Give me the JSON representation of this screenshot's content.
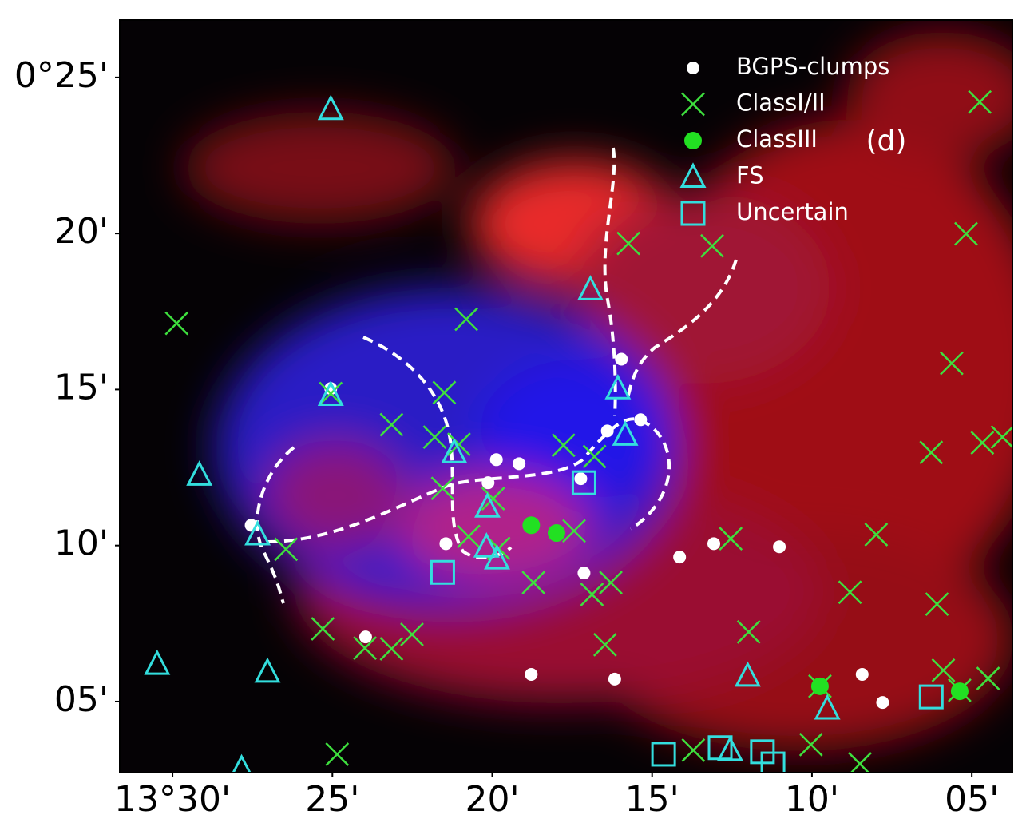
{
  "chart_data": {
    "type": "scatter",
    "annotation": "(d)",
    "xlim": [
      31.65,
      3.73
    ],
    "ylim": [
      2.72,
      26.84
    ],
    "xticks": [
      {
        "value": 30,
        "label": "13°30'"
      },
      {
        "value": 25,
        "label": "25'"
      },
      {
        "value": 20,
        "label": "20'"
      },
      {
        "value": 15,
        "label": "15'"
      },
      {
        "value": 10,
        "label": "10'"
      },
      {
        "value": 5,
        "label": "05'"
      }
    ],
    "yticks": [
      {
        "value": 25,
        "label": "0°25'"
      },
      {
        "value": 20,
        "label": "20'"
      },
      {
        "value": 15,
        "label": "15'"
      },
      {
        "value": 10,
        "label": "10'"
      },
      {
        "value": 5,
        "label": "05'"
      }
    ],
    "legend": "upper right",
    "series": [
      {
        "name": "BGPS-clumps",
        "color": "#ffffff",
        "marker": "circle",
        "x": [
          27.54,
          25.05,
          23.96,
          21.45,
          20.13,
          19.87,
          19.16,
          17.23,
          17.13,
          16.4,
          15.96,
          15.36,
          14.14,
          13.07,
          11.02,
          18.78,
          16.17,
          8.43,
          7.79
        ],
        "values": [
          10.65,
          15.03,
          7.07,
          10.06,
          12.01,
          12.75,
          12.62,
          12.14,
          9.12,
          13.67,
          15.97,
          14.03,
          9.63,
          10.06,
          9.96,
          5.87,
          5.72,
          5.87,
          4.97
        ]
      },
      {
        "name": "ClassI/II",
        "color": "#3ee03e",
        "marker": "x",
        "x": [
          4.75,
          5.18,
          13.12,
          15.74,
          29.87,
          20.81,
          5.63,
          25.05,
          21.5,
          23.15,
          21.8,
          21.04,
          17.77,
          16.8,
          6.27,
          4.67,
          4.04,
          21.55,
          19.97,
          20.74,
          19.8,
          17.44,
          12.54,
          7.99,
          26.45,
          18.71,
          16.88,
          16.29,
          8.81,
          6.09,
          25.3,
          22.51,
          23.15,
          23.98,
          16.47,
          11.98,
          5.89,
          4.49,
          9.75,
          5.38,
          24.85,
          13.71,
          10.03,
          8.5
        ],
        "values": [
          24.21,
          19.99,
          19.6,
          19.68,
          17.12,
          17.25,
          15.84,
          14.87,
          14.9,
          13.87,
          13.47,
          13.24,
          13.21,
          12.85,
          12.98,
          13.29,
          13.47,
          11.83,
          11.5,
          10.29,
          9.91,
          10.47,
          10.22,
          10.35,
          9.88,
          8.81,
          8.43,
          8.81,
          8.5,
          8.12,
          7.33,
          7.15,
          6.69,
          6.71,
          6.82,
          7.23,
          6.0,
          5.74,
          5.49,
          5.36,
          3.31,
          3.44,
          3.62,
          3.0
        ]
      },
      {
        "name": "ClassIII",
        "color": "#22e022",
        "marker": "dot",
        "x": [
          18.78,
          17.99,
          9.75,
          5.38
        ],
        "values": [
          10.65,
          10.4,
          5.49,
          5.33
        ]
      },
      {
        "name": "FS",
        "color": "#33dede",
        "marker": "triangle",
        "x": [
          25.05,
          16.93,
          25.05,
          29.16,
          27.34,
          21.19,
          20.15,
          20.18,
          19.85,
          16.07,
          15.84,
          30.48,
          27.03,
          12.01,
          9.52,
          27.84,
          12.56
        ],
        "values": [
          23.98,
          18.2,
          14.82,
          12.26,
          10.35,
          12.98,
          11.24,
          9.96,
          9.58,
          15.03,
          13.54,
          6.2,
          5.95,
          5.82,
          4.77,
          2.85,
          3.44
        ]
      },
      {
        "name": "Uncertain",
        "color": "#33dede",
        "marker": "square",
        "x": [
          17.13,
          21.55,
          6.27,
          14.64,
          12.87,
          11.55,
          11.22
        ],
        "values": [
          12.01,
          9.14,
          5.15,
          3.31,
          3.52,
          3.39,
          3.0
        ]
      }
    ]
  }
}
